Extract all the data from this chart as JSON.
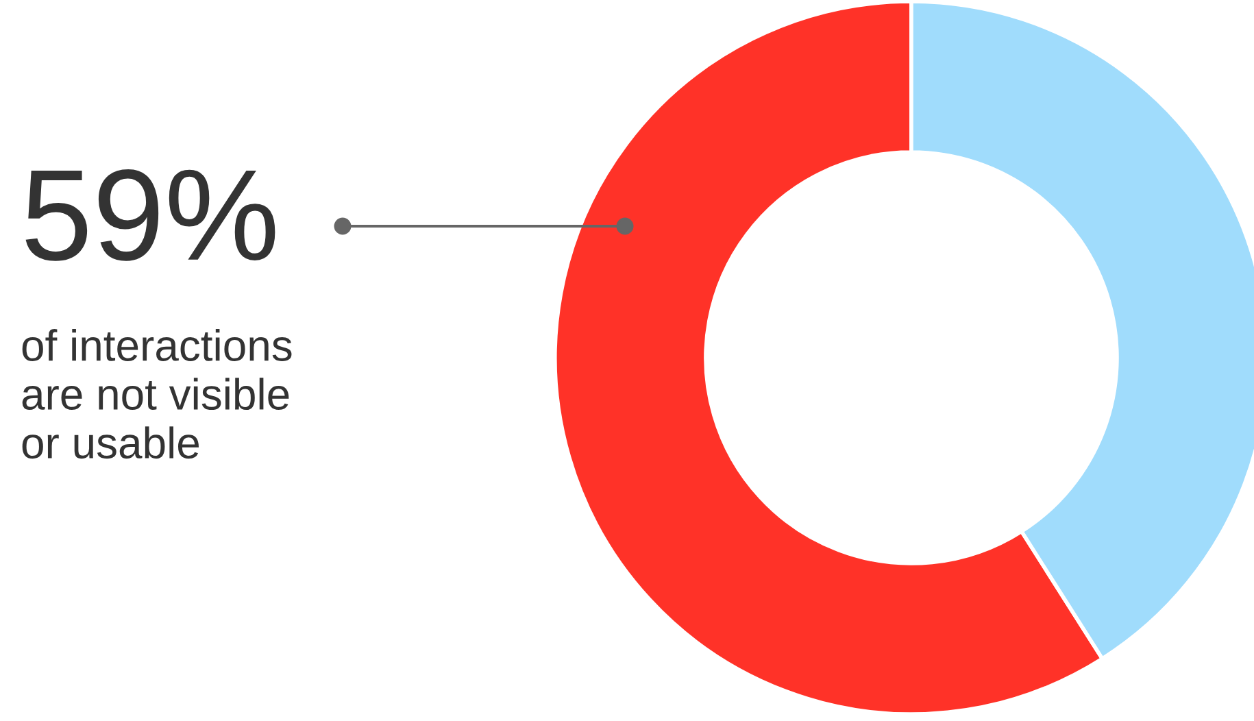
{
  "chart_data": {
    "type": "donut",
    "categories": [
      null,
      null
    ],
    "values": [
      59,
      41
    ],
    "colors": [
      "#ff3228",
      "#a0dcfc"
    ],
    "value_labels": [
      "59%",
      null
    ],
    "annotations": [
      "of interactions\nare not visible\nor usable"
    ]
  }
}
